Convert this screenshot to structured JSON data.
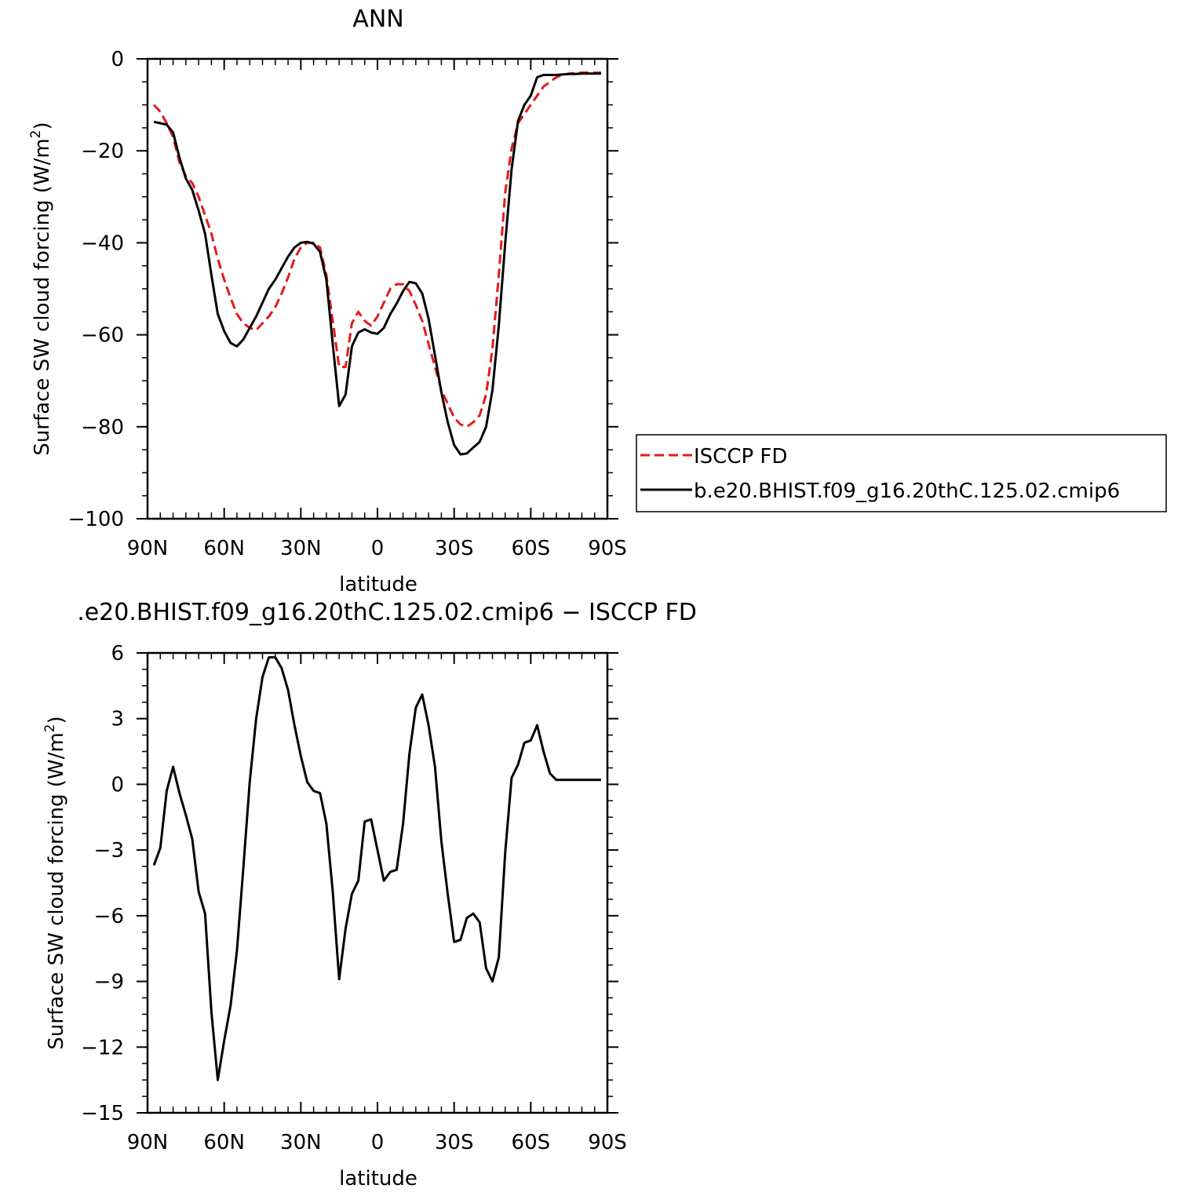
{
  "chart_data": [
    {
      "type": "line",
      "title": "ANN",
      "xlabel": "latitude",
      "ylabel": "Surface SW cloud forcing (W/m²)",
      "ylabel_parts": {
        "main": "Surface SW cloud forcing (W/m",
        "sup": "2",
        "close": ")"
      },
      "xlim": [
        90,
        -90
      ],
      "ylim": [
        -100,
        0
      ],
      "x_ticks": [
        90,
        60,
        30,
        0,
        -30,
        -60,
        -90
      ],
      "x_tick_labels": [
        "90N",
        "60N",
        "30N",
        "0",
        "30S",
        "60S",
        "90S"
      ],
      "y_ticks": [
        0,
        -20,
        -40,
        -60,
        -80,
        -100
      ],
      "y_tick_labels": [
        "0",
        "−20",
        "−40",
        "−60",
        "−80",
        "−100"
      ],
      "grid": false,
      "legend_position": "right",
      "series": [
        {
          "name": "ISCCP FD",
          "color": "#e41a1c",
          "dash": "dashed",
          "x": [
            87.5,
            85,
            82.5,
            80,
            77.5,
            75,
            72.5,
            70,
            67.5,
            65,
            62.5,
            60,
            57.5,
            55,
            52.5,
            50,
            47.5,
            45,
            42.5,
            40,
            37.5,
            35,
            32.5,
            30,
            27.5,
            25,
            22.5,
            20,
            17.5,
            15,
            12.5,
            10,
            7.5,
            5,
            2.5,
            0,
            -2.5,
            -5,
            -7.5,
            -10,
            -12.5,
            -15,
            -17.5,
            -20,
            -22.5,
            -25,
            -27.5,
            -30,
            -32.5,
            -35,
            -37.5,
            -40,
            -42.5,
            -45,
            -47.5,
            -50,
            -52.5,
            -55,
            -57.5,
            -60,
            -62.5,
            -65,
            -67.5,
            -70,
            -72.5,
            -75,
            -77.5,
            -80,
            -82.5,
            -85,
            -87.5
          ],
          "y": [
            -10,
            -11.5,
            -14,
            -17,
            -22.5,
            -25.5,
            -27,
            -30,
            -34,
            -38,
            -43.5,
            -48,
            -52,
            -55.5,
            -57.5,
            -58.5,
            -59,
            -57.5,
            -56,
            -54,
            -51,
            -47.5,
            -43.5,
            -41,
            -40,
            -40,
            -41,
            -47,
            -57,
            -67,
            -67,
            -57.5,
            -55,
            -57,
            -58,
            -56,
            -53,
            -50,
            -49,
            -49,
            -50.5,
            -53.5,
            -57,
            -62,
            -67,
            -72,
            -75,
            -78,
            -79.5,
            -80,
            -79,
            -77.5,
            -73,
            -63,
            -47,
            -29,
            -19.5,
            -14,
            -12,
            -10,
            -8,
            -6,
            -5,
            -4,
            -3.5,
            -3.2,
            -3.1,
            -3,
            -3,
            -3,
            -3
          ]
        },
        {
          "name": "b.e20.BHIST.f09_g16.20thC.125.02.cmip6",
          "color": "#000000",
          "dash": "solid",
          "x": [
            87.5,
            85,
            82.5,
            80,
            77.5,
            75,
            72.5,
            70,
            67.5,
            65,
            62.5,
            60,
            57.5,
            55,
            52.5,
            50,
            47.5,
            45,
            42.5,
            40,
            37.5,
            35,
            32.5,
            30,
            27.5,
            25,
            22.5,
            20,
            17.5,
            15,
            12.5,
            10,
            7.5,
            5,
            2.5,
            0,
            -2.5,
            -5,
            -7.5,
            -10,
            -12.5,
            -15,
            -17.5,
            -20,
            -22.5,
            -25,
            -27.5,
            -30,
            -32.5,
            -35,
            -37.5,
            -40,
            -42.5,
            -45,
            -47.5,
            -50,
            -52.5,
            -55,
            -57.5,
            -60,
            -62.5,
            -65,
            -67.5,
            -70,
            -72.5,
            -75,
            -77.5,
            -80,
            -82.5,
            -85,
            -87.5
          ],
          "y": [
            -13.7,
            -14,
            -14.3,
            -16,
            -21.5,
            -26,
            -28.5,
            -33,
            -38,
            -47,
            -55.5,
            -59.2,
            -61.8,
            -62.5,
            -61,
            -58.5,
            -56,
            -53,
            -50,
            -48,
            -45.5,
            -43,
            -41,
            -40,
            -39.8,
            -40.2,
            -42,
            -48,
            -62,
            -75.5,
            -73,
            -62.5,
            -59.5,
            -58.8,
            -59.5,
            -59.8,
            -58.5,
            -55.5,
            -53.2,
            -50.5,
            -48.5,
            -48.8,
            -51,
            -56.5,
            -64.5,
            -72.5,
            -79,
            -84,
            -86,
            -85.8,
            -84.5,
            -83.3,
            -80,
            -72,
            -58,
            -40,
            -24,
            -13.5,
            -10,
            -8,
            -4,
            -3.5,
            -3.5,
            -3.5,
            -3.4,
            -3.3,
            -3.3,
            -3.2,
            -3.2,
            -3.2,
            -3.2
          ]
        }
      ]
    },
    {
      "type": "line",
      "title": ".e20.BHIST.f09_g16.20thC.125.02.cmip6 − ISCCP FD",
      "xlabel": "latitude",
      "ylabel": "Surface SW cloud forcing (W/m²)",
      "ylabel_parts": {
        "main": "Surface SW cloud forcing (W/m",
        "sup": "2",
        "close": ")"
      },
      "xlim": [
        90,
        -90
      ],
      "ylim": [
        -15,
        6
      ],
      "x_ticks": [
        90,
        60,
        30,
        0,
        -30,
        -60,
        -90
      ],
      "x_tick_labels": [
        "90N",
        "60N",
        "30N",
        "0",
        "30S",
        "60S",
        "90S"
      ],
      "y_ticks": [
        6,
        3,
        0,
        -3,
        -6,
        -9,
        -12,
        -15
      ],
      "y_tick_labels": [
        "6",
        "3",
        "0",
        "−3",
        "−6",
        "−9",
        "−12",
        "−15"
      ],
      "grid": false,
      "series": [
        {
          "color": "#000000",
          "dash": "solid",
          "x": [
            87.5,
            85,
            82.5,
            80,
            77.5,
            75,
            72.5,
            70,
            67.5,
            65,
            62.5,
            60,
            57.5,
            55,
            52.5,
            50,
            47.5,
            45,
            42.5,
            40,
            37.5,
            35,
            32.5,
            30,
            27.5,
            25,
            22.5,
            20,
            17.5,
            15,
            12.5,
            10,
            7.5,
            5,
            2.5,
            0,
            -2.5,
            -5,
            -7.5,
            -10,
            -12.5,
            -15,
            -17.5,
            -20,
            -22.5,
            -25,
            -27.5,
            -30,
            -32.5,
            -35,
            -37.5,
            -40,
            -42.5,
            -45,
            -47.5,
            -50,
            -52.5,
            -55,
            -57.5,
            -60,
            -62.5,
            -65,
            -67.5,
            -70,
            -72.5,
            -75,
            -77.5,
            -80,
            -82.5,
            -85,
            -87.5
          ],
          "y": [
            -3.7,
            -2.9,
            -0.3,
            0.8,
            -0.4,
            -1.4,
            -2.5,
            -4.9,
            -5.9,
            -10.4,
            -13.5,
            -11.7,
            -10.1,
            -7.6,
            -3.8,
            0.1,
            3,
            4.9,
            5.8,
            5.8,
            5.3,
            4.3,
            2.7,
            1.3,
            0.1,
            -0.3,
            -0.4,
            -1.8,
            -4.9,
            -8.9,
            -6.6,
            -5,
            -4.4,
            -1.7,
            -1.6,
            -3,
            -4.4,
            -4,
            -3.9,
            -1.8,
            1.4,
            3.5,
            4.1,
            2.7,
            0.8,
            -2.6,
            -5,
            -7.2,
            -7.1,
            -6.1,
            -5.9,
            -6.3,
            -8.4,
            -9,
            -7.9,
            -3.1,
            0.3,
            0.9,
            1.9,
            2,
            2.7,
            1.5,
            0.5,
            0.2,
            0.2,
            0.2,
            0.2,
            0.2,
            0.2,
            0.2,
            0.2
          ]
        }
      ]
    }
  ],
  "legend": {
    "items": [
      {
        "label": "ISCCP FD",
        "color": "#e41a1c",
        "dash": "dashed"
      },
      {
        "label": "b.e20.BHIST.f09_g16.20thC.125.02.cmip6",
        "color": "#000000",
        "dash": "solid"
      }
    ]
  }
}
